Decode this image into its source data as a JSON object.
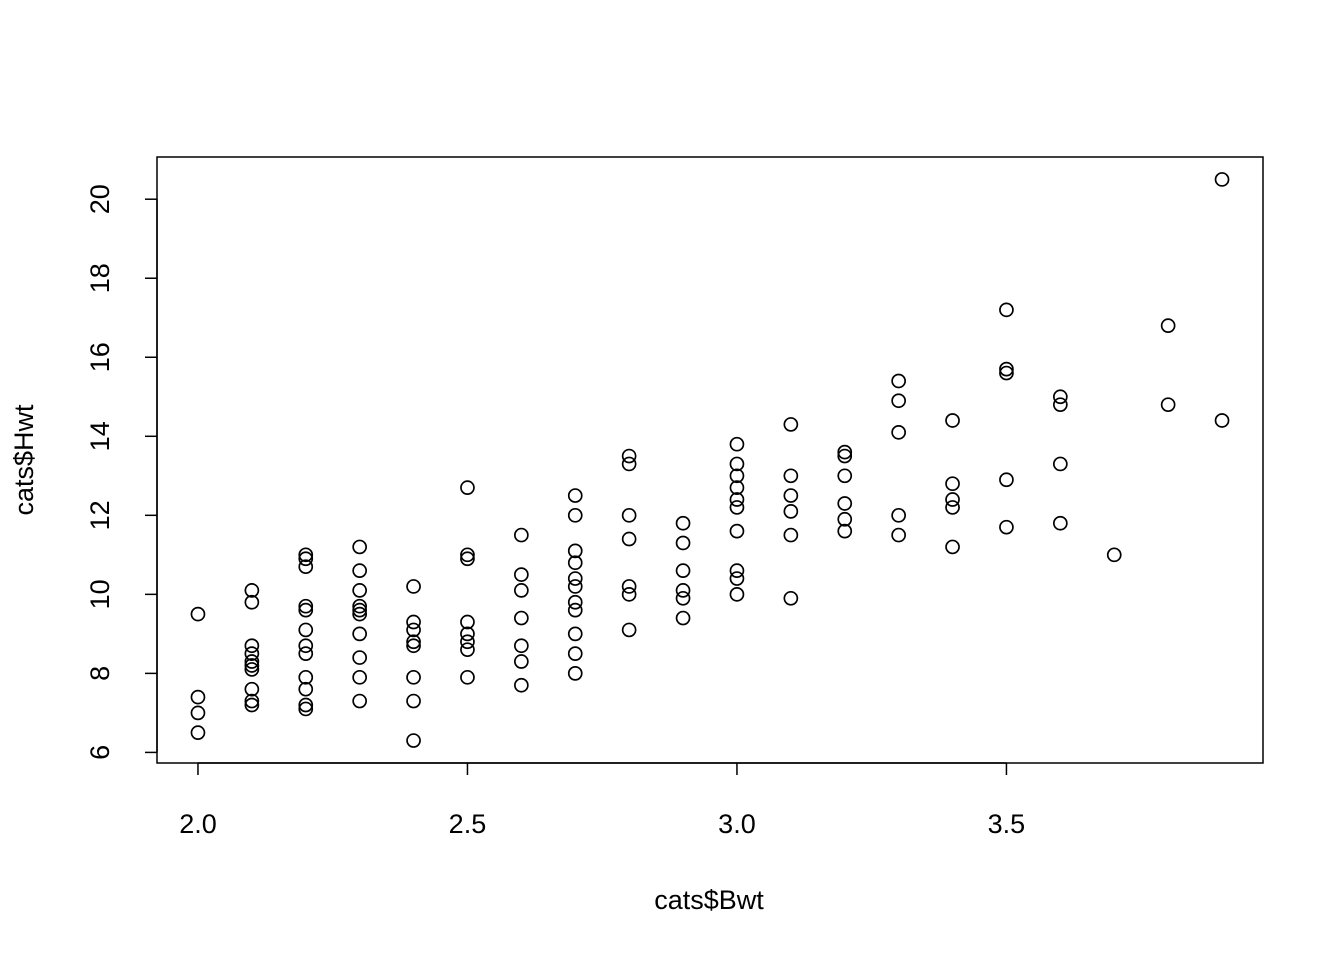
{
  "chart_data": {
    "type": "scatter",
    "xlabel": "cats$Bwt",
    "ylabel": "cats$Hwt",
    "x": [
      2.0,
      2.0,
      2.0,
      2.0,
      2.1,
      2.1,
      2.1,
      2.1,
      2.1,
      2.1,
      2.1,
      2.1,
      2.1,
      2.1,
      2.2,
      2.2,
      2.2,
      2.2,
      2.2,
      2.2,
      2.2,
      2.2,
      2.2,
      2.2,
      2.2,
      2.2,
      2.3,
      2.3,
      2.3,
      2.3,
      2.3,
      2.3,
      2.3,
      2.3,
      2.3,
      2.3,
      2.4,
      2.4,
      2.4,
      2.4,
      2.4,
      2.4,
      2.4,
      2.4,
      2.5,
      2.5,
      2.5,
      2.5,
      2.5,
      2.5,
      2.5,
      2.5,
      2.6,
      2.6,
      2.6,
      2.6,
      2.6,
      2.6,
      2.6,
      2.7,
      2.7,
      2.7,
      2.7,
      2.7,
      2.7,
      2.7,
      2.7,
      2.7,
      2.7,
      2.7,
      2.8,
      2.8,
      2.8,
      2.8,
      2.8,
      2.8,
      2.8,
      2.9,
      2.9,
      2.9,
      2.9,
      2.9,
      2.9,
      3.0,
      3.0,
      3.0,
      3.0,
      3.0,
      3.0,
      3.0,
      3.0,
      3.0,
      3.0,
      3.1,
      3.1,
      3.1,
      3.1,
      3.1,
      3.1,
      3.2,
      3.2,
      3.2,
      3.2,
      3.2,
      3.2,
      3.3,
      3.3,
      3.3,
      3.3,
      3.3,
      3.4,
      3.4,
      3.4,
      3.4,
      3.4,
      3.5,
      3.5,
      3.5,
      3.5,
      3.5,
      3.6,
      3.6,
      3.6,
      3.6,
      3.7,
      3.8,
      3.8,
      3.9,
      3.9
    ],
    "y": [
      9.5,
      7.4,
      7.0,
      6.5,
      10.1,
      9.8,
      8.7,
      8.5,
      8.3,
      8.2,
      8.1,
      7.6,
      7.3,
      7.2,
      11.0,
      10.9,
      10.7,
      9.7,
      9.6,
      9.1,
      8.7,
      8.5,
      7.9,
      7.6,
      7.2,
      7.1,
      11.2,
      10.6,
      10.1,
      9.7,
      9.6,
      9.5,
      9.0,
      8.4,
      7.9,
      7.3,
      10.2,
      9.3,
      9.1,
      8.8,
      8.7,
      7.9,
      7.3,
      6.3,
      12.7,
      11.0,
      10.9,
      9.3,
      9.0,
      8.8,
      8.6,
      7.9,
      11.5,
      10.5,
      10.1,
      9.4,
      8.7,
      8.3,
      7.7,
      12.5,
      12.0,
      11.1,
      10.8,
      10.4,
      10.2,
      9.8,
      9.6,
      9.0,
      8.5,
      8.0,
      13.5,
      13.3,
      12.0,
      11.4,
      10.2,
      10.0,
      9.1,
      11.8,
      11.3,
      10.6,
      10.1,
      9.9,
      9.4,
      13.8,
      13.3,
      13.0,
      12.7,
      12.4,
      12.2,
      11.6,
      10.6,
      10.4,
      10.0,
      14.3,
      13.0,
      12.5,
      12.1,
      11.5,
      9.9,
      13.6,
      13.5,
      13.0,
      12.3,
      11.9,
      11.6,
      15.4,
      14.9,
      14.1,
      12.0,
      11.5,
      14.4,
      12.8,
      12.4,
      12.2,
      11.2,
      17.2,
      15.7,
      15.6,
      12.9,
      11.7,
      15.0,
      14.8,
      13.3,
      11.8,
      11.0,
      16.8,
      14.8,
      20.5,
      14.4
    ],
    "color": "#000000",
    "xlim": [
      1.924,
      3.976
    ],
    "ylim": [
      5.732,
      21.068
    ],
    "xticks": [
      {
        "value": 2.0,
        "label": "2.0"
      },
      2.5,
      {
        "value": 3.0,
        "label": "3.0"
      },
      3.5
    ],
    "yticks": [
      6,
      8,
      10,
      12,
      14,
      16,
      18,
      20
    ],
    "grid": false
  }
}
